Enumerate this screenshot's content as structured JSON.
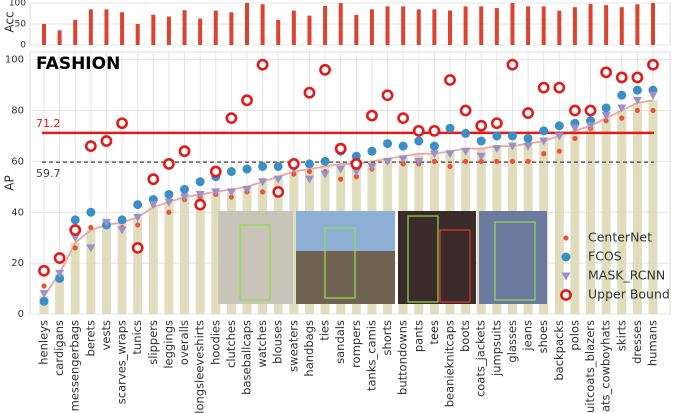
{
  "chart_data": [
    {
      "type": "bar",
      "ylabel": "Acc",
      "ylim": [
        0,
        100
      ],
      "yticks": [
        0,
        50,
        100
      ],
      "color": "#dd4430",
      "values": [
        50,
        35,
        60,
        85,
        85,
        78,
        50,
        72,
        68,
        83,
        63,
        82,
        78,
        100,
        97,
        60,
        82,
        70,
        93,
        100,
        72,
        85,
        92,
        92,
        85,
        85,
        82,
        92,
        92,
        88,
        100,
        92,
        92,
        82,
        90,
        98,
        95,
        90,
        97,
        100
      ]
    },
    {
      "type": "scatter",
      "title": "FASHION",
      "ylabel": "AP",
      "ylim": [
        0,
        103
      ],
      "yticks": [
        0,
        20,
        40,
        60,
        80,
        100
      ],
      "grid": true,
      "legend": "lower right",
      "categories": [
        "henleys",
        "cardigans",
        "messengerbags",
        "berets",
        "vests",
        "scarves_wraps",
        "tunics",
        "slippers",
        "leggings",
        "overalls",
        "longsleeveshirts",
        "hoodies",
        "clutches",
        "baseballcaps",
        "watches",
        "blouses",
        "sweaters",
        "handbags",
        "ties",
        "sandals",
        "rompers",
        "tanks_camis",
        "shorts",
        "buttondowns",
        "pants",
        "tees",
        "beanieknitcaps",
        "boots",
        "coats_jackets",
        "jumpsuits",
        "glasses",
        "jeans",
        "shoes",
        "backpacks",
        "polos",
        "suitcoats_blazers",
        "hats_cowboyhats",
        "skirts",
        "dresses",
        "humans"
      ],
      "bars": {
        "color": "#dcd8b4",
        "line_color": "#f0a4a0",
        "values": [
          7,
          16,
          28,
          33,
          35,
          36,
          38,
          42,
          44,
          46,
          47,
          48,
          49,
          50,
          52,
          54,
          56,
          57,
          58,
          59,
          59,
          60,
          61,
          62,
          63,
          63,
          64,
          65,
          65,
          66,
          66,
          67,
          68,
          70,
          72,
          74,
          77,
          80,
          83,
          84
        ]
      },
      "series": [
        {
          "name": "CenterNet",
          "color": "#e8563a",
          "marker": "dot",
          "values": [
            11,
            22,
            26,
            34,
            35,
            34,
            35,
            43,
            40,
            45,
            46,
            47,
            46,
            48,
            48,
            47,
            55,
            56,
            56,
            53,
            54,
            57,
            60,
            59,
            59,
            60,
            58,
            60,
            60,
            60,
            60,
            60,
            63,
            64,
            69,
            73,
            76,
            77,
            80,
            80
          ]
        },
        {
          "name": "FCOS",
          "color": "#3b8fc4",
          "marker": "circle",
          "values": [
            5,
            14,
            37,
            40,
            35,
            37,
            43,
            45,
            47,
            49,
            52,
            54,
            56,
            57,
            58,
            58,
            59,
            59,
            60,
            64,
            62,
            64,
            67,
            66,
            68,
            66,
            73,
            71,
            68,
            70,
            70,
            69,
            72,
            74,
            75,
            76,
            81,
            86,
            88,
            88
          ]
        },
        {
          "name": "MASK_RCNN",
          "color": "#9a91c9",
          "marker": "triangle",
          "values": [
            8,
            16,
            30,
            26,
            36,
            33,
            38,
            43,
            44,
            46,
            47,
            48,
            48,
            49,
            52,
            53,
            57,
            53,
            55,
            57,
            56,
            58,
            60,
            61,
            60,
            63,
            63,
            64,
            62,
            65,
            66,
            66,
            68,
            70,
            73,
            74,
            78,
            81,
            84,
            86
          ]
        },
        {
          "name": "Upper Bound",
          "color": "#e21a1a",
          "marker": "ring",
          "values": [
            17,
            22,
            33,
            66,
            68,
            75,
            26,
            53,
            59,
            64,
            43,
            56,
            77,
            84,
            98,
            48,
            59,
            87,
            96,
            65,
            59,
            78,
            86,
            77,
            72,
            72,
            92,
            80,
            74,
            75,
            98,
            79,
            89,
            89,
            80,
            80,
            95,
            93,
            93,
            98
          ]
        }
      ],
      "hlines": [
        {
          "value": 71.2,
          "color": "#e21a1a",
          "style": "solid"
        },
        {
          "value": 59.7,
          "color": "#444444",
          "style": "dashed"
        }
      ]
    }
  ]
}
